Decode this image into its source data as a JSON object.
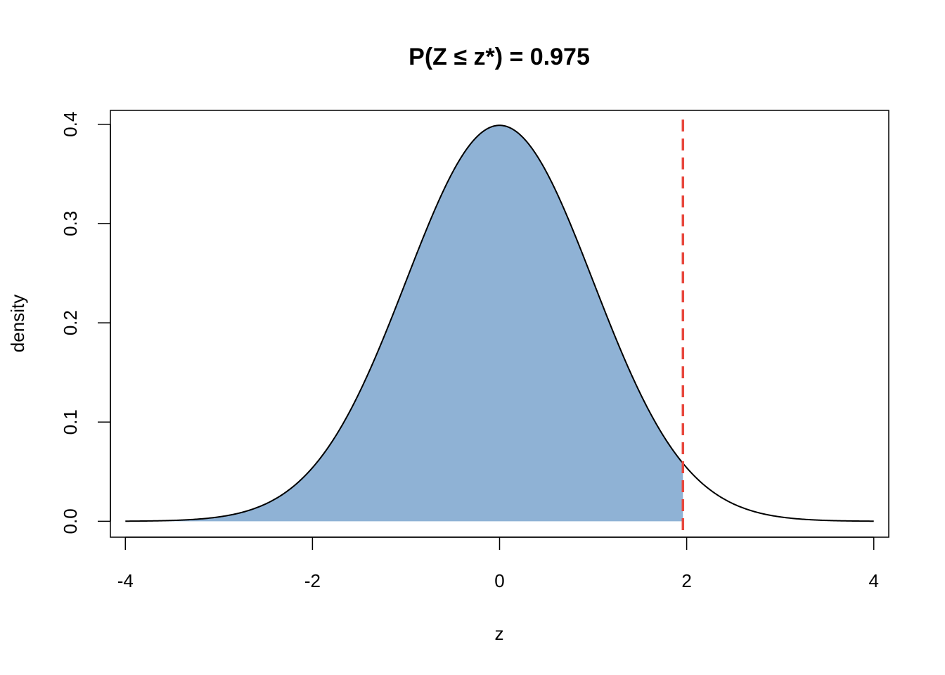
{
  "chart_data": {
    "type": "area",
    "title": "P(Z ≤ z*) = 0.975",
    "xlabel": "z",
    "ylabel": "density",
    "xlim": [
      -4.16,
      4.16
    ],
    "ylim": [
      -0.016,
      0.414
    ],
    "x_ticks": [
      -4,
      -2,
      0,
      2,
      4
    ],
    "x_tick_labels": [
      "-4",
      "-2",
      "0",
      "2",
      "4"
    ],
    "y_ticks": [
      0.0,
      0.1,
      0.2,
      0.3,
      0.4
    ],
    "y_tick_labels": [
      "0.0",
      "0.1",
      "0.2",
      "0.3",
      "0.4"
    ],
    "grid": false,
    "series": [
      {
        "distribution": "standard normal",
        "x_range": [
          -4,
          4
        ],
        "mean": 0,
        "sd": 1,
        "color": "#000000",
        "shaded_from": -4,
        "shaded_to": 1.96,
        "shaded_area": 0.975,
        "fill_color": "#8fb2d5"
      }
    ],
    "reference_line": {
      "x": 1.96,
      "style": "dashed",
      "color": "#e8473c"
    }
  }
}
